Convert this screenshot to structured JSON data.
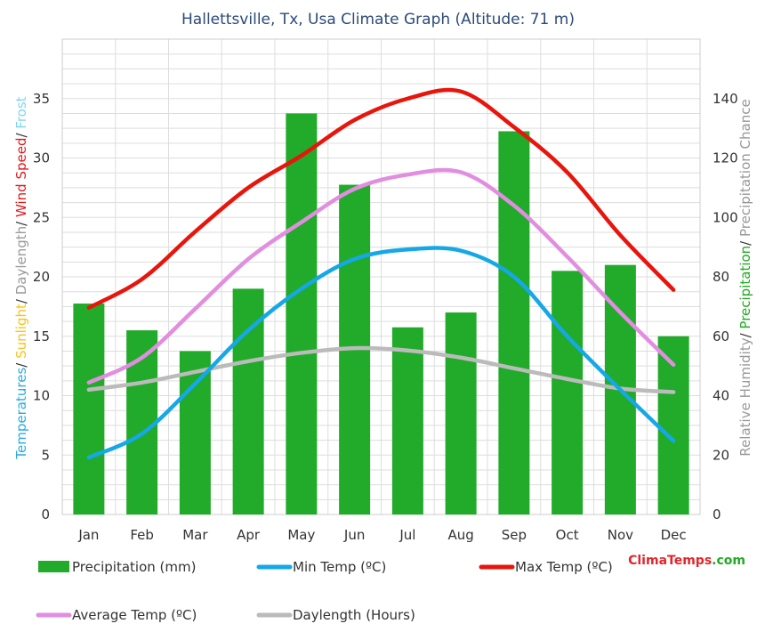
{
  "chart_data": {
    "type": "bar",
    "title": "Hallettsville, Tx, Usa Climate Graph (Altitude: 71 m)",
    "categories": [
      "Jan",
      "Feb",
      "Mar",
      "Apr",
      "May",
      "Jun",
      "Jul",
      "Aug",
      "Sep",
      "Oct",
      "Nov",
      "Dec"
    ],
    "left_axis": {
      "label_parts": [
        {
          "text": "Temperatures",
          "color": "#29abe2"
        },
        {
          "text": "/ ",
          "color": "#333333"
        },
        {
          "text": "Sunlight",
          "color": "#f7c31c"
        },
        {
          "text": "/ ",
          "color": "#333333"
        },
        {
          "text": "Daylength",
          "color": "#999999"
        },
        {
          "text": "/ ",
          "color": "#333333"
        },
        {
          "text": "Wind Speed",
          "color": "#e0191b"
        },
        {
          "text": "/ ",
          "color": "#333333"
        },
        {
          "text": "Frost",
          "color": "#7fd5f0"
        }
      ],
      "ylim": [
        0,
        40
      ],
      "ticks": [
        0,
        5,
        10,
        15,
        20,
        25,
        30,
        35
      ]
    },
    "right_axis": {
      "label_parts": [
        {
          "text": "Relative Humidity",
          "color": "#999999"
        },
        {
          "text": "/ ",
          "color": "#333333"
        },
        {
          "text": "Precipitation",
          "color": "#22aa22"
        },
        {
          "text": "/ ",
          "color": "#333333"
        },
        {
          "text": "Precipitation Chance",
          "color": "#999999"
        }
      ],
      "ylim": [
        0,
        160
      ],
      "ticks": [
        0,
        20,
        40,
        60,
        80,
        100,
        120,
        140
      ]
    },
    "grid": true,
    "series": [
      {
        "name": "Precipitation (mm)",
        "kind": "bar",
        "axis": "right",
        "color": "#22aa2a",
        "values": [
          71,
          62,
          55,
          76,
          135,
          111,
          63,
          68,
          129,
          82,
          84,
          60
        ]
      },
      {
        "name": "Min Temp (ºC)",
        "kind": "line",
        "axis": "left",
        "color": "#16a8e6",
        "values": [
          4.8,
          6.8,
          11.0,
          15.5,
          19.0,
          21.5,
          22.3,
          22.2,
          20.0,
          15.0,
          10.5,
          6.2
        ]
      },
      {
        "name": "Max Temp (ºC)",
        "kind": "line",
        "axis": "left",
        "color": "#e8150d",
        "values": [
          17.4,
          19.8,
          23.8,
          27.5,
          30.2,
          33.2,
          35.0,
          35.6,
          32.6,
          28.8,
          23.5,
          18.9
        ]
      },
      {
        "name": "Average Temp (ºC)",
        "kind": "line",
        "axis": "left",
        "color": "#e18ee0",
        "values": [
          11.1,
          13.2,
          17.3,
          21.5,
          24.6,
          27.4,
          28.6,
          28.8,
          26.0,
          21.7,
          17.0,
          12.6
        ]
      },
      {
        "name": "Daylength (Hours)",
        "kind": "line",
        "axis": "left",
        "color": "#bbbbbb",
        "values": [
          10.5,
          11.1,
          12.0,
          12.9,
          13.6,
          14.0,
          13.8,
          13.2,
          12.3,
          11.4,
          10.6,
          10.3
        ]
      }
    ],
    "legend_placement": "bottom",
    "brand": {
      "part1": "Clima",
      "part2": "Temps",
      "part3": ".com",
      "color1": "#e2262a",
      "color2": "#e2262a",
      "color3": "#22aa22"
    }
  }
}
